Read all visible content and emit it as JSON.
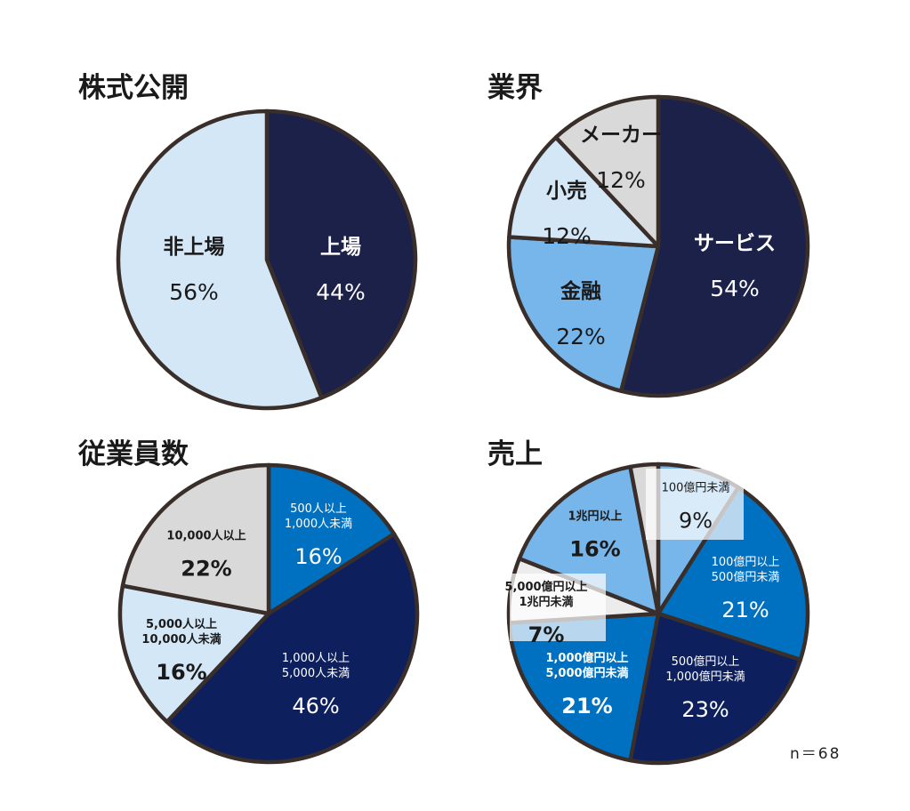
{
  "footer": {
    "note": "n＝68"
  },
  "chart_data": [
    {
      "type": "pie",
      "title": "株式公開",
      "slices": [
        {
          "lines": [
            "上場"
          ],
          "percent": "44%",
          "value": 44,
          "color": "#1c2149",
          "text_color": "#ffffff"
        },
        {
          "lines": [
            "非上場"
          ],
          "percent": "56%",
          "value": 56,
          "color": "#d3e7f7",
          "text_color": "#1a1a1a"
        }
      ]
    },
    {
      "type": "pie",
      "title": "業界",
      "slices": [
        {
          "lines": [
            "サービス"
          ],
          "percent": "54%",
          "value": 54,
          "color": "#1c2149",
          "text_color": "#ffffff"
        },
        {
          "lines": [
            "金融"
          ],
          "percent": "22%",
          "value": 22,
          "color": "#77b6ea",
          "text_color": "#1a1a1a"
        },
        {
          "lines": [
            "小売"
          ],
          "percent": "12%",
          "value": 12,
          "color": "#d3e7f7",
          "text_color": "#1a1a1a"
        },
        {
          "lines": [
            "メーカー"
          ],
          "percent": "12%",
          "value": 12,
          "color": "#d9d9d9",
          "text_color": "#1a1a1a"
        }
      ]
    },
    {
      "type": "pie",
      "title": "従業員数",
      "slices": [
        {
          "lines": [
            "500人以上",
            "1,000人未満"
          ],
          "percent": "16%",
          "value": 16,
          "color": "#0070c0",
          "text_color": "#ffffff"
        },
        {
          "lines": [
            "1,000人以上",
            "5,000人未満"
          ],
          "percent": "46%",
          "value": 46,
          "color": "#0d1f5c",
          "text_color": "#ffffff"
        },
        {
          "lines": [
            "5,000人以上",
            "10,000人未満"
          ],
          "percent": "16%",
          "value": 16,
          "color": "#d3e7f7",
          "text_color": "#1a1a1a"
        },
        {
          "lines": [
            "10,000人以上"
          ],
          "percent": "22%",
          "value": 22,
          "color": "#d9d9d9",
          "text_color": "#1a1a1a"
        }
      ]
    },
    {
      "type": "pie",
      "title": "売上",
      "slices": [
        {
          "lines": [
            "100億円未満"
          ],
          "percent": "9%",
          "value": 9,
          "color": "#77b6ea",
          "text_color": "#1a1a1a"
        },
        {
          "lines": [
            "100億円以上",
            "500億円未満"
          ],
          "percent": "21%",
          "value": 21,
          "color": "#0070c0",
          "text_color": "#ffffff"
        },
        {
          "lines": [
            "500億円以上",
            "1,000億円未満"
          ],
          "percent": "23%",
          "value": 23,
          "color": "#0d1f5c",
          "text_color": "#ffffff"
        },
        {
          "lines": [
            "1,000億円以上",
            "5,000億円未満"
          ],
          "percent": "21%",
          "value": 21,
          "color": "#0070c0",
          "text_color": "#ffffff"
        },
        {
          "lines": [
            "5,000億円以上",
            "1兆円未満"
          ],
          "percent": "7%",
          "value": 7,
          "color": "#ececec",
          "text_color": "#1a1a1a"
        },
        {
          "lines": [
            "1兆円以上"
          ],
          "percent": "16%",
          "value": 16,
          "color": "#77b6ea",
          "text_color": "#1a1a1a"
        },
        {
          "lines": [],
          "percent": "",
          "value": 3,
          "color": "#d9d9d9",
          "text_color": "#1a1a1a"
        }
      ]
    }
  ]
}
